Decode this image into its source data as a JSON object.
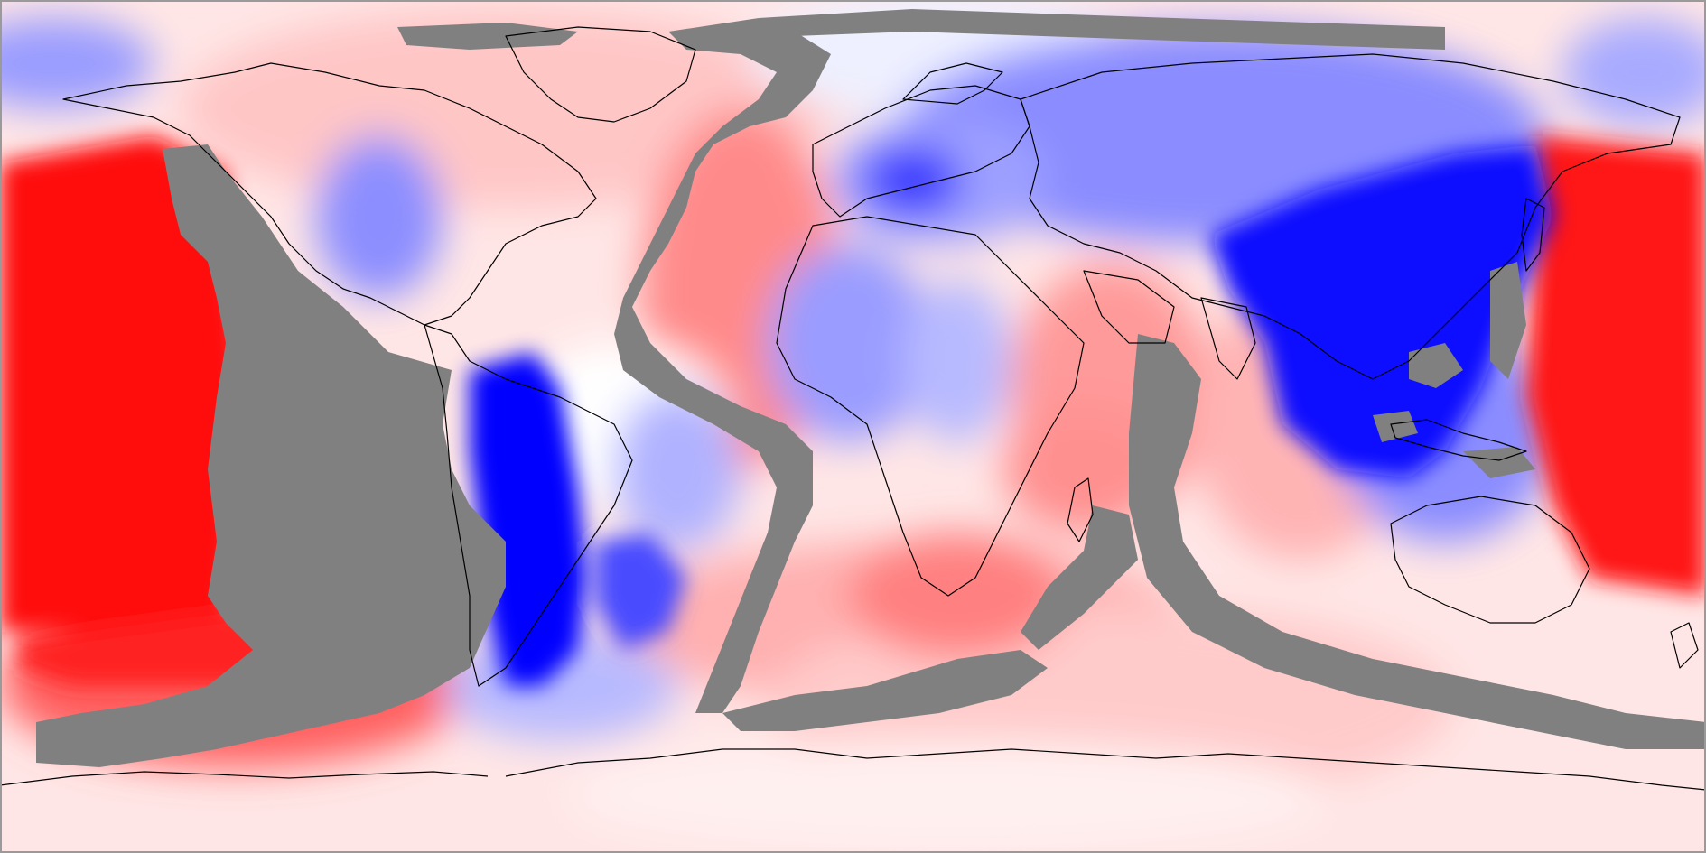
{
  "map": {
    "projection": "equirectangular",
    "view": "global",
    "colormap": {
      "negative": "#0000ff",
      "neutral": "#ffffff",
      "positive": "#ff0000",
      "no_data": "#808080",
      "coastline": "#000000"
    }
  }
}
